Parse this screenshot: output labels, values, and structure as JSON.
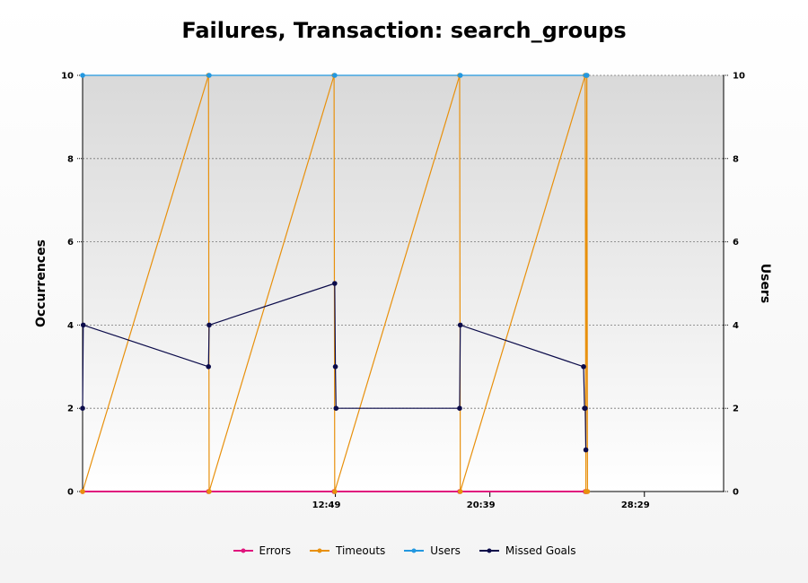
{
  "chart_data": {
    "type": "line",
    "title": "Failures, Transaction: search_groups",
    "ylabel": "Occurrences",
    "y2label": "Users",
    "ylim": [
      0,
      10
    ],
    "y2lim": [
      0,
      10
    ],
    "yticks": [
      0,
      2,
      4,
      6,
      8,
      10
    ],
    "xlim": [
      0,
      1950
    ],
    "xticks": [
      {
        "value": 769,
        "label": "12:49"
      },
      {
        "value": 1239,
        "label": "20:39"
      },
      {
        "value": 1709,
        "label": "28:29"
      }
    ],
    "grid": true,
    "legend_position": "bottom",
    "series": [
      {
        "name": "Errors",
        "color": "#e0157d",
        "axis": "left",
        "points": [
          [
            0,
            0
          ],
          [
            383,
            0
          ],
          [
            765,
            0
          ],
          [
            1147,
            0
          ],
          [
            1529,
            0
          ],
          [
            1531,
            0
          ],
          [
            1534,
            0
          ]
        ]
      },
      {
        "name": "Timeouts",
        "color": "#e8900c",
        "axis": "left",
        "points": [
          [
            0,
            0
          ],
          [
            383,
            10
          ],
          [
            385,
            0
          ],
          [
            765,
            10
          ],
          [
            767,
            0
          ],
          [
            1147,
            10
          ],
          [
            1149,
            0
          ],
          [
            1529,
            10
          ],
          [
            1531,
            0
          ],
          [
            1534,
            10
          ],
          [
            1536,
            0
          ]
        ]
      },
      {
        "name": "Users",
        "color": "#2398e0",
        "axis": "right",
        "points": [
          [
            0,
            10
          ],
          [
            385,
            10
          ],
          [
            767,
            10
          ],
          [
            1149,
            10
          ],
          [
            1531,
            10
          ],
          [
            1534,
            10
          ]
        ]
      },
      {
        "name": "Missed Goals",
        "color": "#0b0b4a",
        "axis": "left",
        "points": [
          [
            0,
            2
          ],
          [
            2,
            4
          ],
          [
            383,
            3
          ],
          [
            385,
            4
          ],
          [
            767,
            5
          ],
          [
            769,
            3
          ],
          [
            771,
            2
          ],
          [
            1147,
            2
          ],
          [
            1149,
            4
          ],
          [
            1524,
            3
          ],
          [
            1527,
            2
          ],
          [
            1529,
            2
          ],
          [
            1531,
            1
          ]
        ]
      }
    ]
  }
}
